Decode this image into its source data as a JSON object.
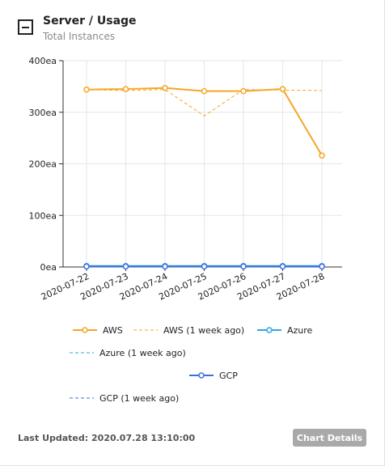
{
  "widget": {
    "title": "Server / Usage",
    "subtitle": "Total Instances",
    "collapse_icon": "minus-square-icon"
  },
  "footer": {
    "last_updated_label": "Last Updated:",
    "last_updated_value": "2020.07.28 13:10:00",
    "details_button": "Chart Details"
  },
  "chart_data": {
    "type": "line",
    "categories": [
      "2020-07-22",
      "2020-07-23",
      "2020-07-24",
      "2020-07-25",
      "2020-07-26",
      "2020-07-27",
      "2020-07-28"
    ],
    "ylim": [
      0,
      400
    ],
    "yticks": [
      0,
      100,
      200,
      300,
      400
    ],
    "ytick_labels": [
      "0ea",
      "100ea",
      "200ea",
      "300ea",
      "400ea"
    ],
    "grid": true,
    "legend_position": "bottom",
    "series": [
      {
        "name": "AWS",
        "values": [
          344,
          345,
          347,
          341,
          341,
          345,
          216
        ],
        "color": "#f5a623",
        "style": "solid",
        "markers": true
      },
      {
        "name": "AWS (1 week ago)",
        "values": [
          344,
          342,
          344,
          293,
          344,
          343,
          342
        ],
        "color": "#f5a623",
        "style": "dashed",
        "markers": false
      },
      {
        "name": "Azure",
        "values": [
          2,
          2,
          2,
          2,
          2,
          2,
          2
        ],
        "color": "#29a9e0",
        "style": "solid",
        "markers": true
      },
      {
        "name": "Azure (1 week ago)",
        "values": [
          2,
          2,
          2,
          2,
          2,
          2,
          2
        ],
        "color": "#29a9e0",
        "style": "dashed",
        "markers": false
      },
      {
        "name": "GCP",
        "values": [
          1,
          1,
          1,
          1,
          1,
          1,
          1
        ],
        "color": "#3b6fe0",
        "style": "solid",
        "markers": true
      },
      {
        "name": "GCP (1 week ago)",
        "values": [
          1,
          1,
          1,
          1,
          1,
          1,
          1
        ],
        "color": "#3b6fe0",
        "style": "dashed",
        "markers": false
      }
    ]
  }
}
